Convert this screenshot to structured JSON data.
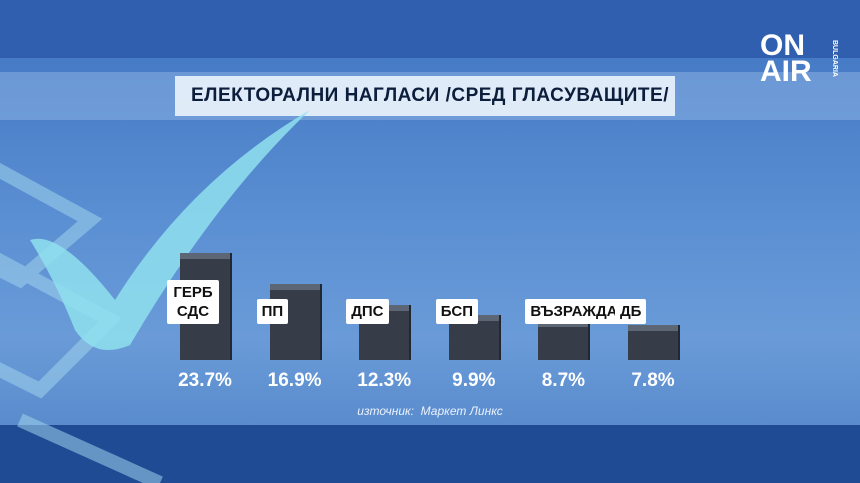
{
  "chart_data": {
    "type": "bar",
    "title": "ЕЛЕКТОРАЛНИ НАГЛАСИ /СРЕД ГЛАСУВАЩИТЕ/",
    "categories": [
      "ГЕРБ СДС",
      "ПП",
      "ДПС",
      "БСП",
      "ВЪЗРАЖДАНЕ",
      "ДБ"
    ],
    "values": [
      23.7,
      16.9,
      12.3,
      9.9,
      8.7,
      7.8
    ],
    "value_labels": [
      "23.7%",
      "16.9%",
      "12.3%",
      "9.9%",
      "8.7%",
      "7.8%"
    ],
    "color": "#363d48",
    "source": "източник:  Маркет Линкс"
  },
  "logo": {
    "text": "ON AIR",
    "subtitle": "BULGARIA"
  }
}
